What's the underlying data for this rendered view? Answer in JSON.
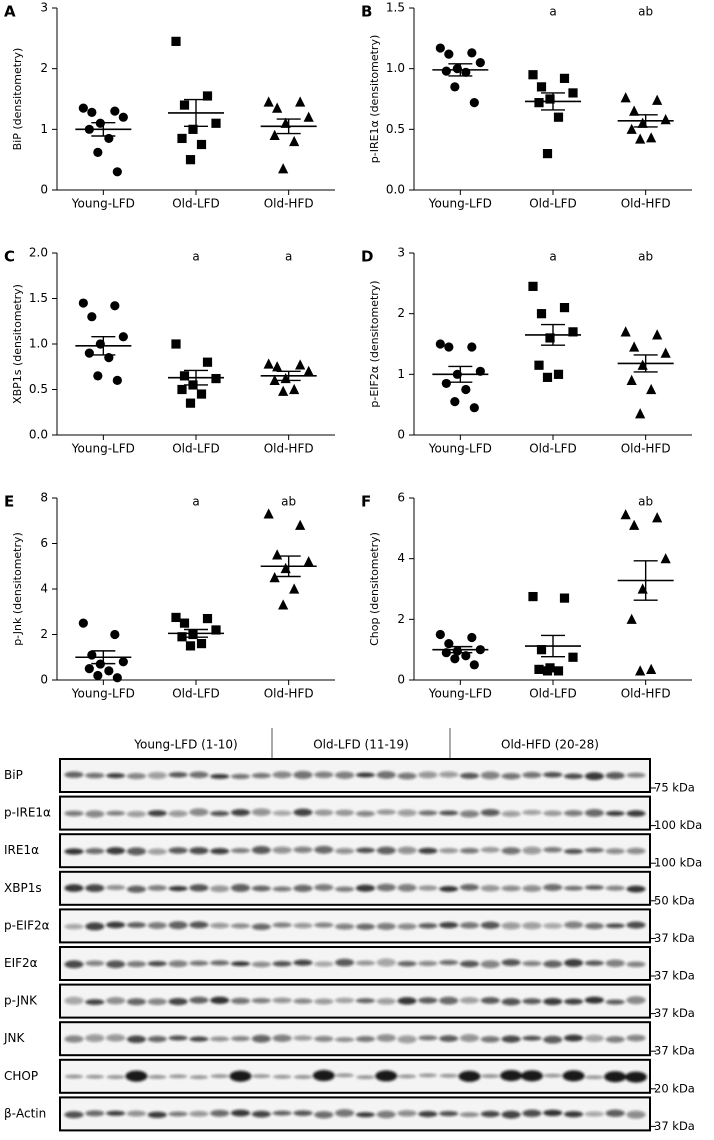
{
  "chart_data": [
    {
      "type": "dot",
      "panel": "A",
      "ylabel": "BiP (densitometry)",
      "categories": [
        "Young-LFD",
        "Old-LFD",
        "Old-HFD"
      ],
      "markers": [
        "circle",
        "square",
        "triangle"
      ],
      "color": "#000000",
      "values": [
        [
          1.35,
          1.3,
          1.28,
          1.2,
          1.1,
          1.0,
          0.85,
          0.62,
          0.3
        ],
        [
          2.45,
          1.55,
          1.4,
          1.1,
          1.0,
          0.85,
          0.75,
          0.5
        ],
        [
          1.45,
          1.45,
          1.35,
          1.2,
          1.1,
          0.9,
          0.8,
          0.35
        ]
      ],
      "means": [
        1.0,
        1.27,
        1.05
      ],
      "sems": [
        0.11,
        0.22,
        0.12
      ],
      "annotations": [
        null,
        null,
        null
      ],
      "ylim": [
        0,
        3
      ],
      "yticks": [
        0,
        1,
        2,
        3
      ]
    },
    {
      "type": "dot",
      "panel": "B",
      "ylabel": "p-IRE1α (densitometry)",
      "categories": [
        "Young-LFD",
        "Old-LFD",
        "Old-HFD"
      ],
      "markers": [
        "circle",
        "square",
        "triangle"
      ],
      "color": "#000000",
      "values": [
        [
          1.17,
          1.13,
          1.12,
          1.05,
          1.0,
          0.98,
          0.97,
          0.85,
          0.72
        ],
        [
          0.95,
          0.92,
          0.85,
          0.8,
          0.75,
          0.72,
          0.6,
          0.3
        ],
        [
          0.76,
          0.74,
          0.65,
          0.58,
          0.55,
          0.5,
          0.43,
          0.42
        ]
      ],
      "means": [
        0.99,
        0.73,
        0.57
      ],
      "sems": [
        0.05,
        0.07,
        0.05
      ],
      "annotations": [
        null,
        "a",
        "ab"
      ],
      "ylim": [
        0,
        1.5
      ],
      "yticks": [
        {
          "value": 0,
          "label": "0.0"
        },
        {
          "value": 0.5,
          "label": "0.5"
        },
        {
          "value": 1,
          "label": "1.0"
        },
        1.5
      ]
    },
    {
      "type": "dot",
      "panel": "C",
      "ylabel": "XBP1s (densitometry)",
      "categories": [
        "Young-LFD",
        "Old-LFD",
        "Old-HFD"
      ],
      "markers": [
        "circle",
        "square",
        "triangle"
      ],
      "color": "#000000",
      "values": [
        [
          1.45,
          1.42,
          1.3,
          1.08,
          1.0,
          0.9,
          0.85,
          0.65,
          0.6
        ],
        [
          1.0,
          0.8,
          0.65,
          0.62,
          0.55,
          0.5,
          0.45,
          0.35
        ],
        [
          0.78,
          0.77,
          0.75,
          0.7,
          0.62,
          0.6,
          0.5,
          0.48
        ]
      ],
      "means": [
        0.98,
        0.63,
        0.65
      ],
      "sems": [
        0.1,
        0.08,
        0.05
      ],
      "annotations": [
        null,
        "a",
        "a"
      ],
      "ylim": [
        0,
        2
      ],
      "yticks": [
        {
          "value": 0,
          "label": "0.0"
        },
        0.5,
        {
          "value": 1,
          "label": "1.0"
        },
        1.5,
        {
          "value": 2,
          "label": "2.0"
        }
      ]
    },
    {
      "type": "dot",
      "panel": "D",
      "ylabel": "p-EIF2α (densitometry)",
      "categories": [
        "Young-LFD",
        "Old-LFD",
        "Old-HFD"
      ],
      "markers": [
        "circle",
        "square",
        "triangle"
      ],
      "color": "#000000",
      "values": [
        [
          1.5,
          1.45,
          1.45,
          1.05,
          1.0,
          0.85,
          0.75,
          0.55,
          0.45
        ],
        [
          2.45,
          2.1,
          2.0,
          1.7,
          1.6,
          1.15,
          1.0,
          0.95
        ],
        [
          1.7,
          1.65,
          1.45,
          1.35,
          1.15,
          0.9,
          0.75,
          0.35
        ]
      ],
      "means": [
        1.0,
        1.65,
        1.18
      ],
      "sems": [
        0.13,
        0.17,
        0.14
      ],
      "annotations": [
        null,
        "a",
        "ab"
      ],
      "ylim": [
        0,
        3
      ],
      "yticks": [
        0,
        1,
        2,
        3
      ]
    },
    {
      "type": "dot",
      "panel": "E",
      "ylabel": "p-Jnk (densitometry)",
      "categories": [
        "Young-LFD",
        "Old-LFD",
        "Old-HFD"
      ],
      "markers": [
        "circle",
        "square",
        "triangle"
      ],
      "color": "#000000",
      "values": [
        [
          2.5,
          2.0,
          1.1,
          0.8,
          0.7,
          0.5,
          0.4,
          0.2,
          0.1
        ],
        [
          2.75,
          2.7,
          2.5,
          2.2,
          2.0,
          1.9,
          1.6,
          1.5
        ],
        [
          7.3,
          6.8,
          5.5,
          5.2,
          4.9,
          4.5,
          4.0,
          3.3
        ]
      ],
      "means": [
        1.0,
        2.05,
        5.0
      ],
      "sems": [
        0.28,
        0.17,
        0.45
      ],
      "annotations": [
        null,
        "a",
        "ab"
      ],
      "ylim": [
        0,
        8
      ],
      "yticks": [
        0,
        2,
        4,
        6,
        8
      ]
    },
    {
      "type": "dot",
      "panel": "F",
      "ylabel": "Chop (densitometry)",
      "categories": [
        "Young-LFD",
        "Old-LFD",
        "Old-HFD"
      ],
      "markers": [
        "circle",
        "square",
        "triangle"
      ],
      "color": "#000000",
      "values": [
        [
          1.5,
          1.4,
          1.2,
          1.0,
          0.95,
          0.9,
          0.8,
          0.7,
          0.5
        ],
        [
          2.75,
          2.7,
          1.0,
          0.75,
          0.4,
          0.35,
          0.3,
          0.3
        ],
        [
          5.45,
          5.35,
          5.1,
          4.0,
          3.0,
          2.0,
          0.35,
          0.3
        ]
      ],
      "means": [
        1.0,
        1.12,
        3.28
      ],
      "sems": [
        0.1,
        0.35,
        0.65
      ],
      "annotations": [
        null,
        null,
        "ab"
      ],
      "ylim": [
        0,
        6
      ],
      "yticks": [
        0,
        2,
        4,
        6
      ]
    }
  ],
  "blot": {
    "groups": [
      "Young-LFD (1-10)",
      "Old-LFD (11-19)",
      "Old-HFD (20-28)"
    ],
    "rows": [
      {
        "label": "BiP",
        "kda": "75 kDa"
      },
      {
        "label": "p-IRE1α",
        "kda": "100 kDa"
      },
      {
        "label": "IRE1α",
        "kda": "100 kDa"
      },
      {
        "label": "XBP1s",
        "kda": "50 kDa"
      },
      {
        "label": "p-EIF2α",
        "kda": "37 kDa"
      },
      {
        "label": "EIF2α",
        "kda": "37 kDa"
      },
      {
        "label": "p-JNK",
        "kda": "37 kDa"
      },
      {
        "label": "JNK",
        "kda": "37 kDa"
      },
      {
        "label": "CHOP",
        "kda": "20 kDa"
      },
      {
        "label": "β-Actin",
        "kda": "37 kDa"
      }
    ]
  }
}
